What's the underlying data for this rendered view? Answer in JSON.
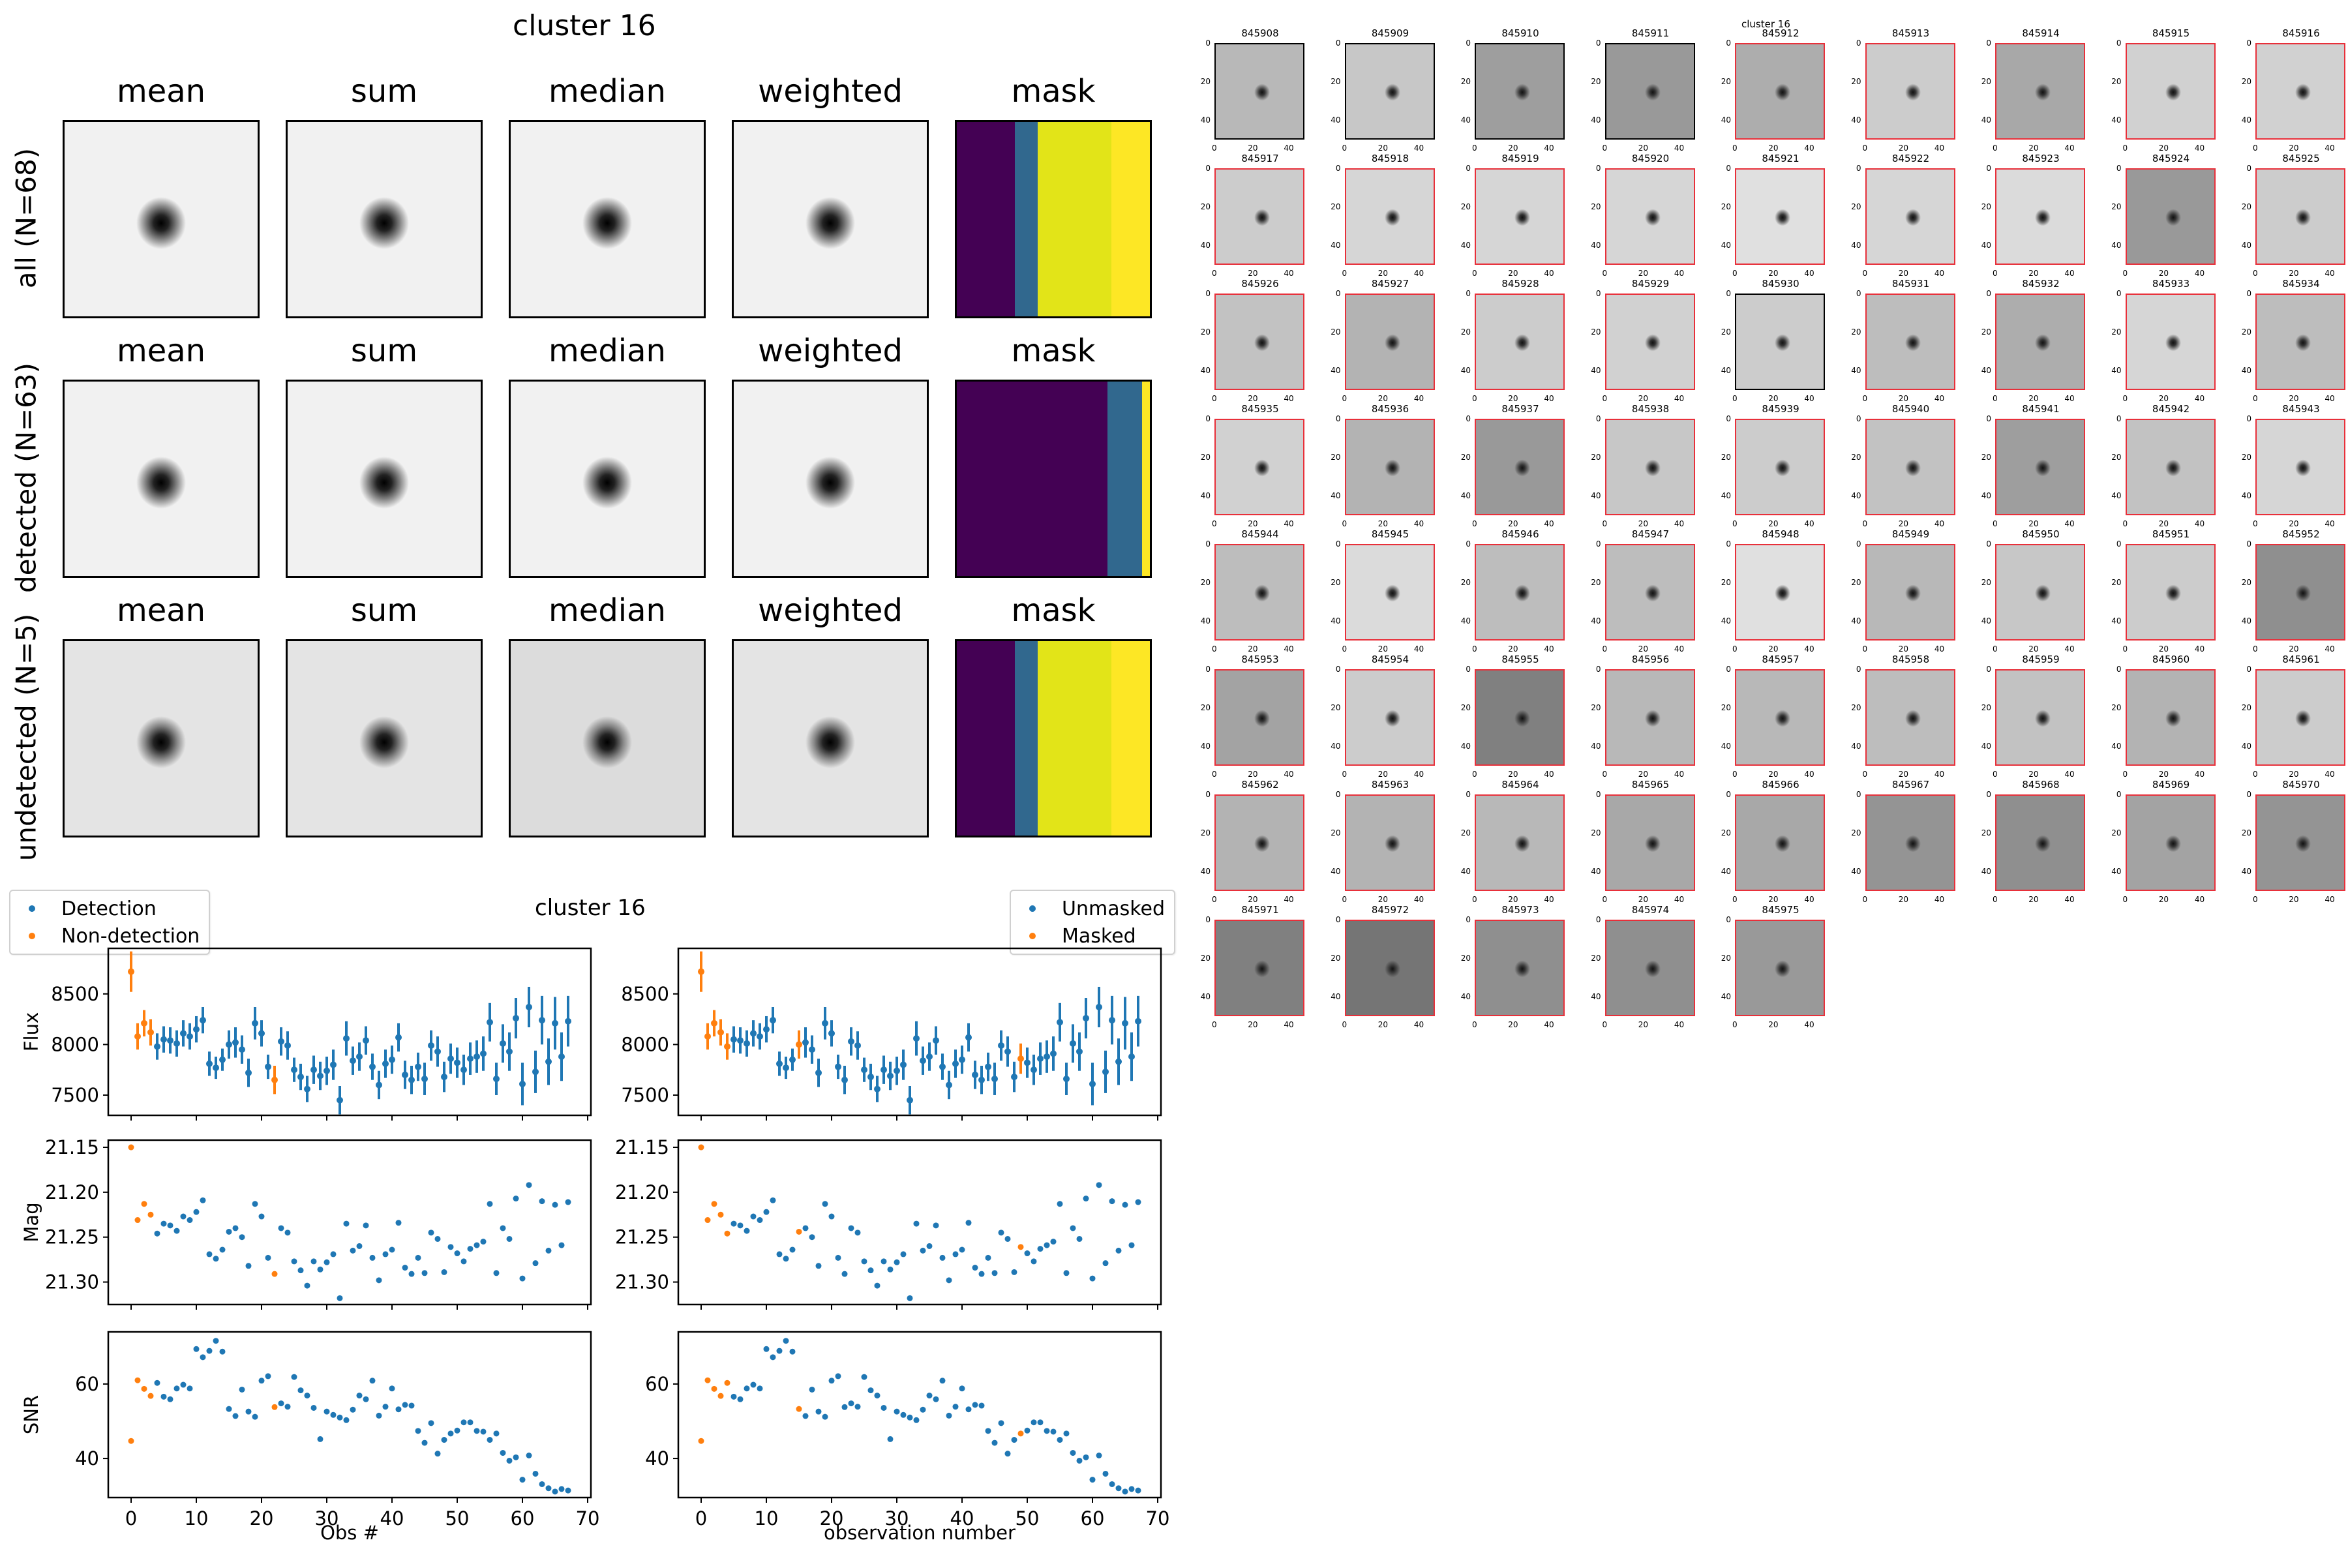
{
  "figure_left": {
    "title": "cluster 16",
    "column_titles": [
      "mean",
      "sum",
      "median",
      "weighted",
      "mask"
    ],
    "rows": [
      {
        "label": "all (N=68)",
        "background": "light",
        "mask_bands": [
          {
            "color": "#440154",
            "fraction": 0.3
          },
          {
            "color": "#31688e",
            "fraction": 0.12
          },
          {
            "color": "#e2e418",
            "fraction": 0.38
          },
          {
            "color": "#fde725",
            "fraction": 0.2
          }
        ]
      },
      {
        "label": "detected (N=63)",
        "background": "light",
        "mask_bands": [
          {
            "color": "#440154",
            "fraction": 0.78
          },
          {
            "color": "#31688e",
            "fraction": 0.18
          },
          {
            "color": "#fde725",
            "fraction": 0.04
          }
        ]
      },
      {
        "label": "undetected (N=5)",
        "background": "noisy",
        "mask_bands": [
          {
            "color": "#440154",
            "fraction": 0.3
          },
          {
            "color": "#31688e",
            "fraction": 0.12
          },
          {
            "color": "#e2e418",
            "fraction": 0.38
          },
          {
            "color": "#fde725",
            "fraction": 0.2
          }
        ]
      }
    ]
  },
  "lightcurve": {
    "title": "cluster 16",
    "left_legend": [
      "Detection",
      "Non-detection"
    ],
    "right_legend": [
      "Unmasked",
      "Masked"
    ],
    "left_xlabel": "Obs #",
    "right_xlabel": "observation number",
    "colors": {
      "blue": "#1f77b4",
      "orange": "#ff7f0e"
    }
  },
  "chart_data": [
    {
      "type": "scatter",
      "title": "cluster 16",
      "panel": "Flux",
      "ylabel": "Flux",
      "xlim": [
        -3.5,
        70.5
      ],
      "ylim": [
        7300,
        8950
      ],
      "yticks": [
        7500,
        8000,
        8500
      ],
      "xticks": [
        0,
        10,
        20,
        30,
        40,
        50,
        60,
        70
      ],
      "x": [
        0,
        1,
        2,
        3,
        4,
        5,
        6,
        7,
        8,
        9,
        10,
        11,
        12,
        13,
        14,
        15,
        16,
        17,
        18,
        19,
        20,
        21,
        22,
        23,
        24,
        25,
        26,
        27,
        28,
        29,
        30,
        31,
        32,
        33,
        34,
        35,
        36,
        37,
        38,
        39,
        40,
        41,
        42,
        43,
        44,
        45,
        46,
        47,
        48,
        49,
        50,
        51,
        52,
        53,
        54,
        55,
        56,
        57,
        58,
        59,
        60,
        61,
        62,
        63,
        64,
        65,
        66,
        67
      ],
      "y": [
        8720,
        8080,
        8210,
        8120,
        7980,
        8050,
        8040,
        8010,
        8110,
        8080,
        8150,
        8240,
        7810,
        7770,
        7850,
        8000,
        8020,
        7950,
        7720,
        8210,
        8110,
        7780,
        7650,
        8030,
        7990,
        7750,
        7680,
        7560,
        7750,
        7690,
        7740,
        7800,
        7450,
        8060,
        7840,
        7880,
        8040,
        7780,
        7600,
        7810,
        7850,
        8070,
        7700,
        7650,
        7780,
        7660,
        7990,
        7930,
        7680,
        7860,
        7820,
        7750,
        7860,
        7880,
        7910,
        8220,
        7660,
        8010,
        7930,
        8260,
        7610,
        8370,
        7730,
        8240,
        7830,
        8210,
        7880,
        8230
      ],
      "yerr": [
        200,
        130,
        130,
        130,
        130,
        130,
        130,
        130,
        130,
        130,
        130,
        130,
        120,
        110,
        110,
        140,
        150,
        140,
        140,
        160,
        130,
        120,
        140,
        140,
        140,
        120,
        130,
        130,
        140,
        140,
        140,
        150,
        140,
        170,
        140,
        140,
        140,
        130,
        140,
        140,
        140,
        140,
        140,
        140,
        140,
        160,
        150,
        150,
        150,
        150,
        150,
        150,
        160,
        160,
        170,
        190,
        160,
        190,
        190,
        200,
        210,
        200,
        210,
        240,
        230,
        260,
        240,
        250
      ],
      "series": [
        {
          "name": "Detection",
          "color": "#1f77b4",
          "indices_excluded": [
            0,
            1,
            2,
            3,
            22
          ]
        },
        {
          "name": "Non-detection",
          "color": "#ff7f0e",
          "indices": [
            0,
            1,
            2,
            3,
            22
          ]
        }
      ],
      "masked_series": [
        {
          "name": "Unmasked",
          "color": "#1f77b4"
        },
        {
          "name": "Masked",
          "color": "#ff7f0e",
          "indices": [
            0,
            1,
            2,
            3,
            4,
            15,
            49
          ]
        }
      ]
    },
    {
      "type": "scatter",
      "panel": "Mag",
      "ylabel": "Mag",
      "inverted_y": true,
      "ylim": [
        21.142,
        21.325
      ],
      "yticks": [
        21.15,
        21.2,
        21.25,
        21.3
      ],
      "ytick_labels": [
        "21.15",
        "21.20",
        "21.25",
        "21.30"
      ],
      "y": [
        21.15,
        21.231,
        21.213,
        21.225,
        21.246,
        21.235,
        21.237,
        21.243,
        21.227,
        21.231,
        21.222,
        21.209,
        21.269,
        21.274,
        21.264,
        21.244,
        21.24,
        21.25,
        21.282,
        21.213,
        21.227,
        21.273,
        21.291,
        21.24,
        21.245,
        21.277,
        21.287,
        21.304,
        21.277,
        21.286,
        21.278,
        21.269,
        21.318,
        21.235,
        21.265,
        21.26,
        21.237,
        21.273,
        21.298,
        21.269,
        21.264,
        21.234,
        21.284,
        21.291,
        21.273,
        21.29,
        21.245,
        21.252,
        21.289,
        21.261,
        21.268,
        21.277,
        21.263,
        21.259,
        21.255,
        21.213,
        21.29,
        21.24,
        21.252,
        21.207,
        21.296,
        21.192,
        21.279,
        21.21,
        21.265,
        21.214,
        21.259,
        21.211
      ]
    },
    {
      "type": "scatter",
      "panel": "SNR",
      "ylabel": "SNR",
      "ylim": [
        29.5,
        74
      ],
      "yticks": [
        40,
        60
      ],
      "y": [
        44.7,
        61.0,
        58.7,
        56.8,
        60.3,
        56.6,
        55.9,
        58.8,
        59.8,
        58.8,
        69.4,
        67.2,
        68.9,
        71.6,
        68.7,
        53.3,
        51.4,
        58.5,
        52.6,
        51.2,
        60.9,
        62.1,
        53.8,
        54.8,
        53.9,
        61.9,
        58.3,
        56.9,
        53.6,
        45.2,
        52.6,
        51.7,
        51.0,
        50.3,
        53.1,
        56.9,
        55.9,
        60.9,
        51.5,
        53.9,
        58.8,
        53.2,
        54.4,
        54.2,
        47.4,
        44.2,
        49.5,
        41.3,
        45.0,
        46.7,
        47.5,
        49.7,
        49.7,
        47.4,
        47.2,
        45.0,
        46.7,
        41.5,
        39.4,
        40.3,
        34.3,
        40.8,
        35.9,
        33.1,
        32.0,
        31.1,
        31.8,
        31.4
      ]
    }
  ],
  "stamps": {
    "title": "cluster 16",
    "axis_ticks": [
      "0",
      "20",
      "40"
    ],
    "ids": [
      "845908",
      "845909",
      "845910",
      "845911",
      "845912",
      "845913",
      "845914",
      "845915",
      "845916",
      "845917",
      "845918",
      "845919",
      "845920",
      "845921",
      "845922",
      "845923",
      "845924",
      "845925",
      "845926",
      "845927",
      "845928",
      "845929",
      "845930",
      "845931",
      "845932",
      "845933",
      "845934",
      "845935",
      "845936",
      "845937",
      "845938",
      "845939",
      "845940",
      "845941",
      "845942",
      "845943",
      "845944",
      "845945",
      "845946",
      "845947",
      "845948",
      "845949",
      "845950",
      "845951",
      "845952",
      "845953",
      "845954",
      "845955",
      "845956",
      "845957",
      "845958",
      "845959",
      "845960",
      "845961",
      "845962",
      "845963",
      "845964",
      "845965",
      "845966",
      "845967",
      "845968",
      "845969",
      "845970",
      "845971",
      "845972",
      "845973",
      "845974",
      "845975"
    ],
    "black_border_indices": [
      0,
      1,
      2,
      3,
      22
    ],
    "border_colors": {
      "detected": "#e8303a",
      "undetected": "#000000"
    },
    "background_gray": [
      0.72,
      0.78,
      0.62,
      0.6,
      0.68,
      0.8,
      0.66,
      0.82,
      0.82,
      0.8,
      0.84,
      0.84,
      0.84,
      0.88,
      0.84,
      0.86,
      0.6,
      0.8,
      0.76,
      0.7,
      0.8,
      0.82,
      0.8,
      0.74,
      0.68,
      0.84,
      0.74,
      0.82,
      0.7,
      0.6,
      0.78,
      0.8,
      0.76,
      0.62,
      0.76,
      0.84,
      0.74,
      0.86,
      0.74,
      0.74,
      0.88,
      0.72,
      0.78,
      0.8,
      0.56,
      0.64,
      0.8,
      0.5,
      0.72,
      0.72,
      0.74,
      0.76,
      0.7,
      0.8,
      0.7,
      0.7,
      0.72,
      0.66,
      0.66,
      0.58,
      0.56,
      0.64,
      0.58,
      0.5,
      0.46,
      0.56,
      0.56,
      0.6
    ]
  }
}
